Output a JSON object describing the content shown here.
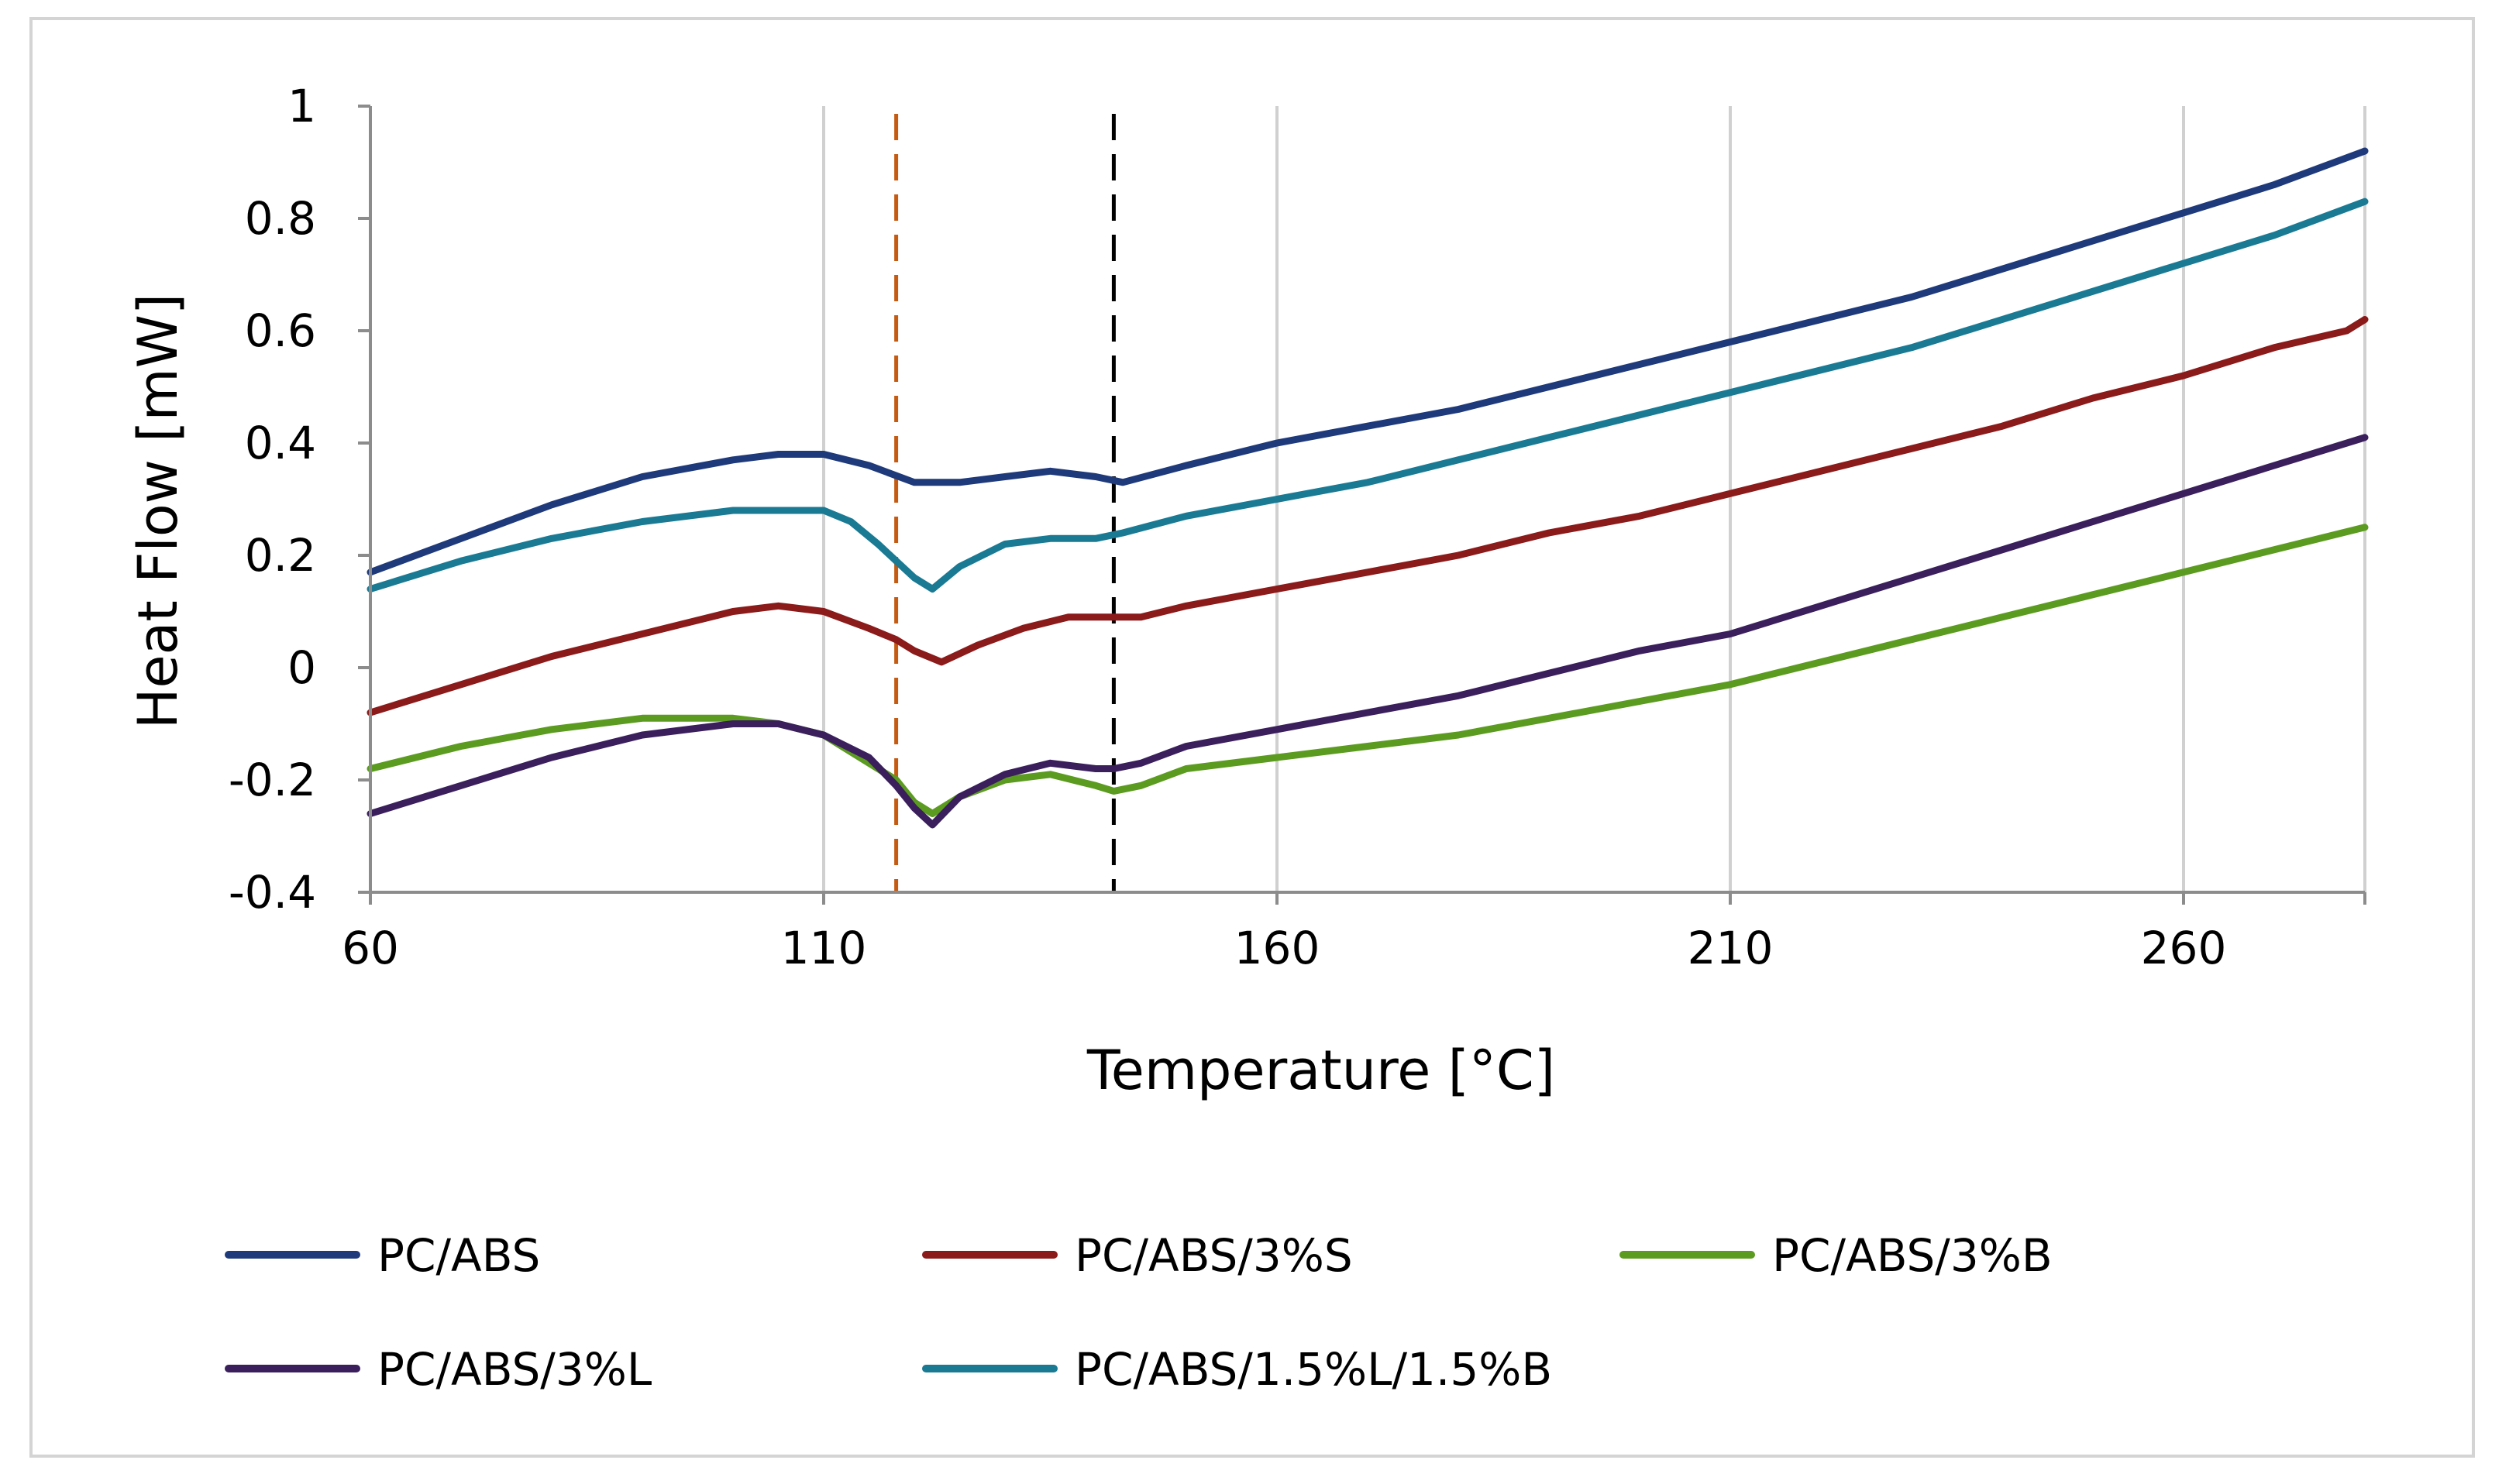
{
  "chart_data": {
    "type": "line",
    "title": "",
    "xlabel": "Temperature [°C]",
    "ylabel": "Heat Flow [mW]",
    "xlim": [
      60,
      280
    ],
    "ylim": [
      -0.4,
      1
    ],
    "x_ticks": [
      60,
      110,
      160,
      210,
      260
    ],
    "x_tick_labels": [
      "60",
      "110",
      "160",
      "210",
      "260"
    ],
    "y_ticks": [
      1,
      0.8,
      0.6,
      0.4,
      0.2,
      0,
      -0.2,
      -0.4
    ],
    "y_tick_labels": [
      "1",
      "0.8",
      "0.6",
      "0.4",
      "0.2",
      "0",
      "-0.2",
      "-0.4"
    ],
    "grid": "vertical",
    "legend_position": "bottom",
    "reference_lines": [
      {
        "x": 118,
        "color": "#c55a11",
        "style": "dashed"
      },
      {
        "x": 142,
        "color": "#000000",
        "style": "dashed"
      }
    ],
    "series": [
      {
        "name": "PC/ABS",
        "color": "#1f3a7a",
        "points": [
          [
            60,
            0.17
          ],
          [
            70,
            0.23
          ],
          [
            80,
            0.29
          ],
          [
            90,
            0.34
          ],
          [
            100,
            0.37
          ],
          [
            105,
            0.38
          ],
          [
            110,
            0.38
          ],
          [
            115,
            0.36
          ],
          [
            120,
            0.33
          ],
          [
            125,
            0.33
          ],
          [
            130,
            0.34
          ],
          [
            135,
            0.35
          ],
          [
            140,
            0.34
          ],
          [
            143,
            0.33
          ],
          [
            150,
            0.36
          ],
          [
            160,
            0.4
          ],
          [
            170,
            0.43
          ],
          [
            180,
            0.46
          ],
          [
            190,
            0.5
          ],
          [
            200,
            0.54
          ],
          [
            210,
            0.58
          ],
          [
            220,
            0.62
          ],
          [
            230,
            0.66
          ],
          [
            240,
            0.71
          ],
          [
            250,
            0.76
          ],
          [
            260,
            0.81
          ],
          [
            270,
            0.86
          ],
          [
            280,
            0.92
          ]
        ]
      },
      {
        "name": "PC/ABS/3%S",
        "color": "#8b1a1a",
        "points": [
          [
            60,
            -0.08
          ],
          [
            70,
            -0.03
          ],
          [
            80,
            0.02
          ],
          [
            90,
            0.06
          ],
          [
            100,
            0.1
          ],
          [
            105,
            0.11
          ],
          [
            110,
            0.1
          ],
          [
            115,
            0.07
          ],
          [
            118,
            0.05
          ],
          [
            120,
            0.03
          ],
          [
            123,
            0.01
          ],
          [
            127,
            0.04
          ],
          [
            132,
            0.07
          ],
          [
            137,
            0.09
          ],
          [
            142,
            0.09
          ],
          [
            145,
            0.09
          ],
          [
            150,
            0.11
          ],
          [
            160,
            0.14
          ],
          [
            170,
            0.17
          ],
          [
            180,
            0.2
          ],
          [
            190,
            0.24
          ],
          [
            200,
            0.27
          ],
          [
            210,
            0.31
          ],
          [
            220,
            0.35
          ],
          [
            230,
            0.39
          ],
          [
            240,
            0.43
          ],
          [
            250,
            0.48
          ],
          [
            260,
            0.52
          ],
          [
            270,
            0.57
          ],
          [
            278,
            0.6
          ],
          [
            280,
            0.62
          ]
        ]
      },
      {
        "name": "PC/ABS/3%B",
        "color": "#5b9b20",
        "points": [
          [
            60,
            -0.18
          ],
          [
            70,
            -0.14
          ],
          [
            80,
            -0.11
          ],
          [
            90,
            -0.09
          ],
          [
            100,
            -0.09
          ],
          [
            105,
            -0.1
          ],
          [
            110,
            -0.12
          ],
          [
            115,
            -0.17
          ],
          [
            118,
            -0.2
          ],
          [
            120,
            -0.24
          ],
          [
            122,
            -0.26
          ],
          [
            125,
            -0.23
          ],
          [
            130,
            -0.2
          ],
          [
            135,
            -0.19
          ],
          [
            140,
            -0.21
          ],
          [
            142,
            -0.22
          ],
          [
            145,
            -0.21
          ],
          [
            150,
            -0.18
          ],
          [
            160,
            -0.16
          ],
          [
            170,
            -0.14
          ],
          [
            180,
            -0.12
          ],
          [
            190,
            -0.09
          ],
          [
            200,
            -0.06
          ],
          [
            210,
            -0.03
          ],
          [
            220,
            0.01
          ],
          [
            230,
            0.05
          ],
          [
            240,
            0.09
          ],
          [
            250,
            0.13
          ],
          [
            260,
            0.17
          ],
          [
            270,
            0.21
          ],
          [
            280,
            0.25
          ]
        ]
      },
      {
        "name": "PC/ABS/3%L",
        "color": "#3a1f5c",
        "points": [
          [
            60,
            -0.26
          ],
          [
            70,
            -0.21
          ],
          [
            80,
            -0.16
          ],
          [
            90,
            -0.12
          ],
          [
            100,
            -0.1
          ],
          [
            105,
            -0.1
          ],
          [
            110,
            -0.12
          ],
          [
            115,
            -0.16
          ],
          [
            118,
            -0.21
          ],
          [
            120,
            -0.25
          ],
          [
            122,
            -0.28
          ],
          [
            125,
            -0.23
          ],
          [
            130,
            -0.19
          ],
          [
            135,
            -0.17
          ],
          [
            140,
            -0.18
          ],
          [
            142,
            -0.18
          ],
          [
            145,
            -0.17
          ],
          [
            150,
            -0.14
          ],
          [
            160,
            -0.11
          ],
          [
            170,
            -0.08
          ],
          [
            180,
            -0.05
          ],
          [
            190,
            -0.01
          ],
          [
            200,
            0.03
          ],
          [
            210,
            0.06
          ],
          [
            220,
            0.11
          ],
          [
            230,
            0.16
          ],
          [
            240,
            0.21
          ],
          [
            250,
            0.26
          ],
          [
            260,
            0.31
          ],
          [
            270,
            0.36
          ],
          [
            280,
            0.41
          ]
        ]
      },
      {
        "name": "PC/ABS/1.5%L/1.5%B",
        "color": "#1a7a94",
        "points": [
          [
            60,
            0.14
          ],
          [
            70,
            0.19
          ],
          [
            80,
            0.23
          ],
          [
            90,
            0.26
          ],
          [
            100,
            0.28
          ],
          [
            105,
            0.28
          ],
          [
            110,
            0.28
          ],
          [
            113,
            0.26
          ],
          [
            116,
            0.22
          ],
          [
            118,
            0.19
          ],
          [
            120,
            0.16
          ],
          [
            122,
            0.14
          ],
          [
            125,
            0.18
          ],
          [
            130,
            0.22
          ],
          [
            135,
            0.23
          ],
          [
            140,
            0.23
          ],
          [
            143,
            0.24
          ],
          [
            150,
            0.27
          ],
          [
            160,
            0.3
          ],
          [
            170,
            0.33
          ],
          [
            180,
            0.37
          ],
          [
            190,
            0.41
          ],
          [
            200,
            0.45
          ],
          [
            210,
            0.49
          ],
          [
            220,
            0.53
          ],
          [
            230,
            0.57
          ],
          [
            240,
            0.62
          ],
          [
            250,
            0.67
          ],
          [
            260,
            0.72
          ],
          [
            270,
            0.77
          ],
          [
            280,
            0.83
          ]
        ]
      }
    ]
  }
}
